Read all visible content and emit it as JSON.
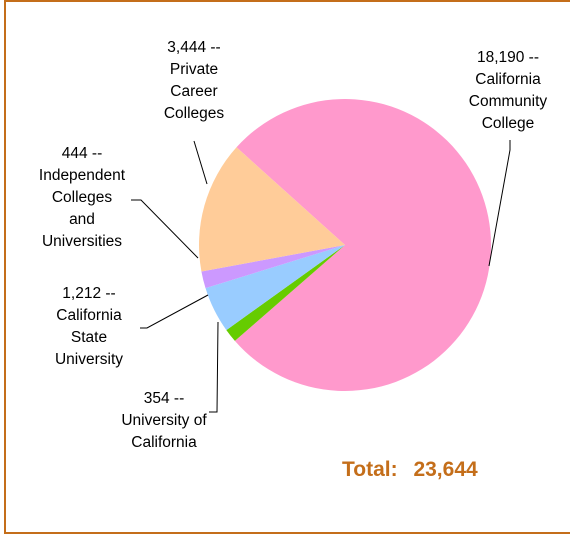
{
  "chart_data": {
    "type": "pie",
    "title": "",
    "slices": [
      {
        "value": 18190,
        "label": "18,190 --",
        "name_lines": [
          "California",
          "Community",
          "College"
        ],
        "color": "#ff99cc"
      },
      {
        "value": 354,
        "label": "354 --",
        "name_lines": [
          "University of",
          "California"
        ],
        "color": "#66cc00"
      },
      {
        "value": 1212,
        "label": "1,212 --",
        "name_lines": [
          "California",
          "State",
          "University"
        ],
        "color": "#99ccff"
      },
      {
        "value": 444,
        "label": "444 --",
        "name_lines": [
          "Independent",
          "Colleges",
          "and",
          "Universities"
        ],
        "color": "#cc99ff"
      },
      {
        "value": 3444,
        "label": "3,444 --",
        "name_lines": [
          "Private",
          "Career",
          "Colleges"
        ],
        "color": "#ffcc99"
      }
    ],
    "total_label": "Total:",
    "total_value": "23,644"
  }
}
